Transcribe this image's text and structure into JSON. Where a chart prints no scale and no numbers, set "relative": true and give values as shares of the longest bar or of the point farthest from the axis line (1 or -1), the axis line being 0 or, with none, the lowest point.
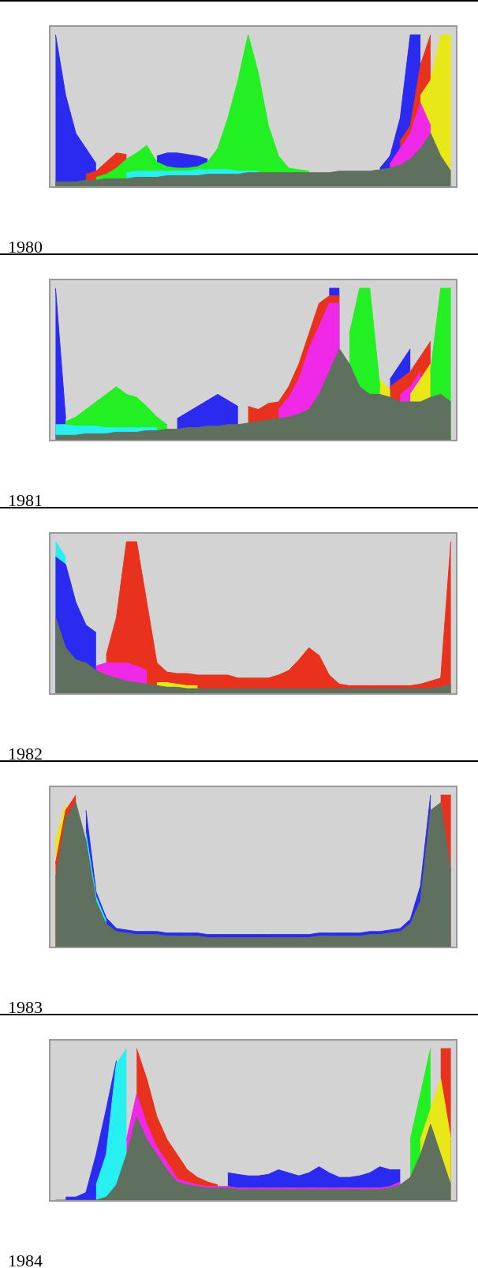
{
  "chart_data": [
    {
      "type": "area",
      "relative": true,
      "annotations": [
        "1980"
      ],
      "categories": [
        null,
        null,
        null,
        null,
        null,
        null,
        null,
        null,
        null,
        null,
        null,
        null,
        null,
        null,
        null,
        null,
        null,
        null,
        null,
        null,
        null,
        null,
        null,
        null,
        null,
        null,
        null,
        null,
        null,
        null,
        null,
        null,
        null,
        null,
        null,
        null,
        null,
        null,
        null,
        null
      ],
      "series": [
        {
          "color": "#2a2af0",
          "values": [
            1,
            0.6,
            0.35,
            0.25,
            0.15,
            null,
            null,
            null,
            null,
            null,
            0.2,
            0.22,
            0.22,
            0.21,
            0.2,
            0.18,
            null,
            null,
            null,
            null,
            null,
            null,
            null,
            null,
            null,
            null,
            null,
            null,
            null,
            null,
            null,
            null,
            0.12,
            0.2,
            0.45,
            1,
            1,
            null,
            null,
            null
          ]
        },
        {
          "color": "#e8321e",
          "values": [
            null,
            null,
            null,
            0.08,
            0.1,
            0.16,
            0.22,
            0.21,
            null,
            null,
            null,
            null,
            null,
            null,
            null,
            null,
            null,
            null,
            null,
            null,
            null,
            null,
            null,
            null,
            null,
            null,
            null,
            null,
            null,
            null,
            null,
            null,
            null,
            null,
            0.3,
            0.4,
            0.8,
            1,
            null,
            null
          ]
        },
        {
          "color": "#e8e818",
          "values": [
            null,
            null,
            null,
            null,
            null,
            null,
            null,
            null,
            null,
            null,
            null,
            null,
            null,
            null,
            null,
            null,
            null,
            null,
            null,
            null,
            null,
            null,
            null,
            null,
            null,
            null,
            null,
            null,
            null,
            null,
            null,
            null,
            null,
            null,
            null,
            null,
            0.6,
            0.7,
            1,
            1
          ]
        },
        {
          "color": "#f028e8",
          "values": [
            null,
            null,
            null,
            null,
            null,
            null,
            null,
            null,
            null,
            null,
            null,
            null,
            null,
            null,
            null,
            null,
            null,
            null,
            null,
            null,
            null,
            null,
            null,
            null,
            null,
            null,
            null,
            null,
            null,
            null,
            null,
            null,
            null,
            0.15,
            0.25,
            0.35,
            0.55,
            0.4,
            null,
            null
          ]
        },
        {
          "color": "#22f022",
          "values": [
            null,
            null,
            null,
            null,
            0.06,
            0.08,
            0.12,
            0.18,
            0.22,
            0.27,
            0.16,
            0.13,
            0.12,
            0.12,
            0.13,
            0.16,
            0.25,
            0.45,
            0.7,
            1,
            0.75,
            0.4,
            0.2,
            0.12,
            0.11,
            0.1,
            null,
            null,
            null,
            null,
            null,
            null,
            null,
            null,
            null,
            null,
            null,
            null,
            null,
            null
          ]
        },
        {
          "color": "#28f0f0",
          "values": [
            null,
            null,
            null,
            null,
            null,
            null,
            null,
            0.09,
            0.1,
            0.1,
            0.1,
            0.1,
            0.1,
            0.1,
            0.11,
            0.11,
            0.11,
            0.11,
            0.1,
            0.1,
            0.1,
            null,
            null,
            null,
            null,
            null,
            null,
            null,
            null,
            null,
            null,
            null,
            null,
            null,
            null,
            null,
            null,
            null,
            null,
            null
          ]
        },
        {
          "color": "#5f705f",
          "values": [
            0.03,
            0.03,
            0.03,
            0.04,
            0.04,
            0.05,
            0.05,
            0.05,
            0.06,
            0.06,
            0.06,
            0.07,
            0.07,
            0.07,
            0.07,
            0.08,
            0.08,
            0.08,
            0.08,
            0.09,
            0.09,
            0.09,
            0.09,
            0.09,
            0.09,
            0.09,
            0.09,
            0.09,
            0.1,
            0.1,
            0.1,
            0.1,
            0.11,
            0.12,
            0.14,
            0.18,
            0.25,
            0.35,
            0.2,
            0.1
          ]
        }
      ]
    },
    {
      "type": "area",
      "relative": true,
      "annotations": [
        "1981"
      ],
      "categories": [
        null,
        null,
        null,
        null,
        null,
        null,
        null,
        null,
        null,
        null,
        null,
        null,
        null,
        null,
        null,
        null,
        null,
        null,
        null,
        null,
        null,
        null,
        null,
        null,
        null,
        null,
        null,
        null,
        null,
        null,
        null,
        null,
        null,
        null,
        null,
        null,
        null,
        null,
        null,
        null
      ],
      "series": [
        {
          "color": "#2a2af0",
          "values": [
            1,
            0.14,
            null,
            null,
            null,
            null,
            null,
            null,
            null,
            null,
            null,
            null,
            0.14,
            0.18,
            0.22,
            0.26,
            0.3,
            0.26,
            0.22,
            null,
            null,
            null,
            null,
            null,
            null,
            null,
            null,
            1,
            1,
            null,
            null,
            null,
            null,
            0.4,
            0.5,
            0.6,
            null,
            null,
            null,
            null
          ]
        },
        {
          "color": "#e8321e",
          "values": [
            null,
            null,
            null,
            null,
            null,
            null,
            null,
            null,
            null,
            null,
            null,
            null,
            null,
            null,
            null,
            null,
            null,
            null,
            null,
            0.22,
            0.2,
            0.24,
            0.25,
            0.35,
            0.5,
            0.7,
            0.9,
            0.95,
            0.95,
            null,
            null,
            null,
            null,
            0.35,
            0.4,
            0.45,
            0.55,
            0.65,
            null,
            null
          ]
        },
        {
          "color": "#f028e8",
          "values": [
            null,
            null,
            null,
            null,
            null,
            null,
            null,
            null,
            null,
            null,
            null,
            null,
            null,
            null,
            null,
            null,
            null,
            null,
            null,
            null,
            null,
            null,
            0.2,
            0.28,
            0.4,
            0.6,
            0.75,
            0.9,
            0.9,
            null,
            null,
            null,
            null,
            null,
            0.3,
            0.35,
            0.45,
            null,
            null,
            null
          ]
        },
        {
          "color": "#e8e818",
          "values": [
            null,
            null,
            null,
            null,
            null,
            null,
            null,
            null,
            null,
            null,
            null,
            null,
            null,
            null,
            null,
            null,
            null,
            null,
            null,
            null,
            null,
            null,
            null,
            null,
            null,
            null,
            null,
            null,
            null,
            null,
            null,
            null,
            0.4,
            0.33,
            null,
            0.3,
            0.4,
            0.5,
            null,
            null
          ]
        },
        {
          "color": "#22f022",
          "values": [
            null,
            0.12,
            0.15,
            0.2,
            0.25,
            0.3,
            0.35,
            0.3,
            0.28,
            0.22,
            0.15,
            0.1,
            null,
            null,
            null,
            null,
            null,
            null,
            null,
            null,
            null,
            null,
            null,
            null,
            null,
            null,
            null,
            null,
            null,
            0.7,
            1,
            1,
            0.35,
            null,
            null,
            null,
            null,
            0.45,
            1,
            1
          ]
        },
        {
          "color": "#28f0f0",
          "values": [
            0.1,
            0.1,
            0.09,
            0.09,
            0.09,
            0.08,
            0.08,
            0.08,
            0.08,
            0.08,
            0.08,
            null,
            null,
            null,
            null,
            null,
            null,
            null,
            null,
            null,
            null,
            null,
            null,
            null,
            null,
            null,
            null,
            null,
            null,
            null,
            null,
            null,
            null,
            null,
            null,
            null,
            null,
            null,
            null,
            null
          ]
        },
        {
          "color": "#5f705f",
          "values": [
            0.03,
            0.03,
            0.03,
            0.04,
            0.04,
            0.04,
            0.05,
            0.05,
            0.05,
            0.06,
            0.06,
            0.07,
            0.07,
            0.08,
            0.08,
            0.09,
            0.09,
            0.1,
            0.1,
            0.11,
            0.12,
            0.13,
            0.14,
            0.15,
            0.17,
            0.2,
            0.3,
            0.45,
            0.6,
            0.5,
            0.35,
            0.3,
            0.3,
            0.28,
            0.25,
            0.25,
            0.25,
            0.28,
            0.3,
            0.25
          ]
        }
      ]
    },
    {
      "type": "area",
      "relative": true,
      "annotations": [
        "1982"
      ],
      "categories": [
        null,
        null,
        null,
        null,
        null,
        null,
        null,
        null,
        null,
        null,
        null,
        null,
        null,
        null,
        null,
        null,
        null,
        null,
        null,
        null,
        null,
        null,
        null,
        null,
        null,
        null,
        null,
        null,
        null,
        null,
        null,
        null,
        null,
        null,
        null,
        null,
        null,
        null,
        null,
        null
      ],
      "series": [
        {
          "color": "#28f0f0",
          "values": [
            1,
            0.9,
            null,
            null,
            null,
            null,
            null,
            null,
            null,
            null,
            null,
            null,
            null,
            null,
            null,
            null,
            null,
            null,
            null,
            null,
            null,
            null,
            null,
            null,
            null,
            null,
            null,
            null,
            null,
            null,
            null,
            null,
            null,
            null,
            null,
            null,
            null,
            null,
            null,
            null
          ]
        },
        {
          "color": "#2a2af0",
          "values": [
            0.9,
            0.85,
            0.6,
            0.45,
            0.4,
            null,
            null,
            null,
            null,
            null,
            null,
            null,
            null,
            null,
            null,
            null,
            null,
            null,
            null,
            null,
            null,
            null,
            null,
            null,
            null,
            null,
            null,
            null,
            null,
            null,
            null,
            null,
            null,
            null,
            null,
            null,
            null,
            null,
            null,
            null
          ]
        },
        {
          "color": "#e8321e",
          "values": [
            null,
            null,
            null,
            null,
            null,
            0.25,
            0.5,
            1,
            1,
            0.6,
            0.2,
            0.14,
            0.13,
            0.13,
            0.12,
            0.12,
            0.12,
            0.12,
            0.1,
            0.1,
            0.1,
            0.1,
            0.12,
            0.15,
            0.22,
            0.3,
            0.25,
            0.12,
            0.06,
            0.05,
            0.05,
            0.05,
            0.05,
            0.05,
            0.05,
            0.05,
            0.06,
            0.08,
            0.1,
            1
          ]
        },
        {
          "color": "#f028e8",
          "values": [
            null,
            null,
            null,
            null,
            0.18,
            0.2,
            0.2,
            0.2,
            0.18,
            0.15,
            null,
            null,
            null,
            null,
            null,
            null,
            null,
            null,
            null,
            null,
            null,
            null,
            null,
            null,
            null,
            null,
            null,
            null,
            null,
            null,
            null,
            null,
            null,
            null,
            null,
            null,
            null,
            null,
            null,
            null
          ]
        },
        {
          "color": "#e8e818",
          "values": [
            null,
            null,
            null,
            null,
            null,
            null,
            null,
            null,
            null,
            null,
            0.07,
            0.07,
            0.06,
            0.05,
            0.05,
            null,
            null,
            null,
            null,
            null,
            null,
            null,
            null,
            null,
            null,
            null,
            null,
            null,
            null,
            null,
            null,
            null,
            null,
            null,
            null,
            null,
            null,
            null,
            null,
            null
          ]
        },
        {
          "color": "#5f705f",
          "values": [
            0.5,
            0.3,
            0.22,
            0.2,
            0.15,
            0.12,
            0.1,
            0.08,
            0.07,
            0.06,
            0.05,
            0.04,
            0.04,
            0.03,
            0.03,
            0.03,
            0.03,
            0.03,
            0.03,
            0.03,
            0.03,
            0.03,
            0.03,
            0.03,
            0.03,
            0.03,
            0.03,
            0.03,
            0.03,
            0.03,
            0.03,
            0.03,
            0.03,
            0.03,
            0.03,
            0.03,
            0.03,
            0.03,
            0.04,
            0.06
          ]
        }
      ]
    },
    {
      "type": "area",
      "relative": true,
      "annotations": [
        "1983"
      ],
      "categories": [
        null,
        null,
        null,
        null,
        null,
        null,
        null,
        null,
        null,
        null,
        null,
        null,
        null,
        null,
        null,
        null,
        null,
        null,
        null,
        null,
        null,
        null,
        null,
        null,
        null,
        null,
        null,
        null,
        null,
        null,
        null,
        null,
        null,
        null,
        null,
        null,
        null,
        null,
        null,
        null
      ],
      "series": [
        {
          "color": "#e8e818",
          "values": [
            0.7,
            0.95,
            null,
            null,
            null,
            null,
            null,
            null,
            null,
            null,
            null,
            null,
            null,
            null,
            null,
            null,
            null,
            null,
            null,
            null,
            null,
            null,
            null,
            null,
            null,
            null,
            null,
            null,
            null,
            null,
            null,
            null,
            null,
            null,
            null,
            null,
            null,
            null,
            null,
            null
          ]
        },
        {
          "color": "#e8321e",
          "values": [
            0.55,
            0.9,
            1,
            null,
            null,
            null,
            null,
            null,
            null,
            null,
            null,
            null,
            null,
            null,
            null,
            null,
            null,
            null,
            null,
            null,
            null,
            null,
            null,
            null,
            null,
            null,
            null,
            null,
            null,
            null,
            null,
            null,
            null,
            null,
            null,
            null,
            null,
            null,
            1,
            1
          ]
        },
        {
          "color": "#2a2af0",
          "values": [
            null,
            null,
            null,
            0.9,
            0.36,
            0.19,
            0.12,
            0.11,
            0.1,
            0.1,
            0.1,
            0.09,
            0.09,
            0.09,
            0.09,
            0.08,
            0.08,
            0.08,
            0.08,
            0.08,
            0.08,
            0.08,
            0.08,
            0.08,
            0.08,
            0.08,
            0.09,
            0.09,
            0.09,
            0.09,
            0.09,
            0.1,
            0.1,
            0.11,
            0.12,
            0.18,
            0.4,
            1,
            null,
            null
          ]
        },
        {
          "color": "#28f0f0",
          "values": [
            null,
            null,
            null,
            0.75,
            0.33,
            0.17,
            null,
            null,
            null,
            null,
            null,
            null,
            null,
            null,
            null,
            null,
            null,
            null,
            null,
            null,
            null,
            null,
            null,
            null,
            null,
            null,
            null,
            null,
            null,
            null,
            null,
            null,
            null,
            null,
            null,
            null,
            null,
            null,
            null,
            null
          ]
        },
        {
          "color": "#5f705f",
          "values": [
            0.45,
            0.85,
            0.95,
            0.7,
            0.3,
            0.15,
            0.1,
            0.09,
            0.08,
            0.08,
            0.08,
            0.07,
            0.07,
            0.07,
            0.07,
            0.06,
            0.06,
            0.06,
            0.06,
            0.06,
            0.06,
            0.06,
            0.06,
            0.06,
            0.06,
            0.06,
            0.07,
            0.07,
            0.07,
            0.07,
            0.07,
            0.08,
            0.08,
            0.09,
            0.1,
            0.15,
            0.3,
            0.9,
            0.95,
            0.5
          ]
        }
      ]
    },
    {
      "type": "area",
      "relative": true,
      "annotations": [
        "1984"
      ],
      "categories": [
        null,
        null,
        null,
        null,
        null,
        null,
        null,
        null,
        null,
        null,
        null,
        null,
        null,
        null,
        null,
        null,
        null,
        null,
        null,
        null,
        null,
        null,
        null,
        null,
        null,
        null,
        null,
        null,
        null,
        null,
        null,
        null,
        null,
        null,
        null,
        null,
        null,
        null,
        null,
        null
      ],
      "series": [
        {
          "color": "#2a2af0",
          "values": [
            null,
            0.02,
            0.02,
            0.05,
            0.3,
            0.6,
            0.92,
            null,
            null,
            null,
            null,
            null,
            null,
            null,
            null,
            null,
            null,
            0.18,
            0.17,
            0.16,
            0.16,
            0.17,
            0.2,
            0.18,
            0.16,
            0.18,
            0.22,
            0.18,
            0.15,
            0.15,
            0.16,
            0.18,
            0.22,
            0.2,
            0.2,
            null,
            null,
            null,
            null,
            null
          ]
        },
        {
          "color": "#28f0f0",
          "values": [
            null,
            null,
            null,
            null,
            0.1,
            0.3,
            0.9,
            1,
            null,
            null,
            null,
            null,
            null,
            null,
            null,
            null,
            null,
            null,
            null,
            null,
            null,
            null,
            null,
            null,
            null,
            null,
            null,
            null,
            null,
            null,
            null,
            null,
            null,
            null,
            null,
            null,
            null,
            null,
            null,
            null
          ]
        },
        {
          "color": "#e8321e",
          "values": [
            null,
            null,
            null,
            null,
            null,
            null,
            null,
            null,
            1,
            0.8,
            0.55,
            0.4,
            0.3,
            0.2,
            0.15,
            0.12,
            0.1,
            null,
            null,
            null,
            null,
            null,
            null,
            null,
            null,
            null,
            null,
            null,
            null,
            null,
            null,
            null,
            null,
            null,
            null,
            null,
            null,
            null,
            1,
            1
          ]
        },
        {
          "color": "#f028e8",
          "values": [
            null,
            null,
            null,
            null,
            null,
            null,
            null,
            0.4,
            0.7,
            0.5,
            0.35,
            0.25,
            0.14,
            0.12,
            0.1,
            0.09,
            0.09,
            0.09,
            0.08,
            0.08,
            0.08,
            0.08,
            0.08,
            0.08,
            0.08,
            0.08,
            0.08,
            0.08,
            0.08,
            0.08,
            0.08,
            0.08,
            0.08,
            0.09,
            0.12,
            null,
            null,
            null,
            null,
            null
          ]
        },
        {
          "color": "#22f022",
          "values": [
            null,
            null,
            null,
            null,
            null,
            null,
            null,
            null,
            null,
            null,
            null,
            null,
            null,
            null,
            null,
            null,
            null,
            null,
            null,
            null,
            null,
            null,
            null,
            null,
            null,
            null,
            null,
            null,
            null,
            null,
            null,
            null,
            null,
            null,
            null,
            0.4,
            0.7,
            1,
            null,
            null
          ]
        },
        {
          "color": "#e8e818",
          "values": [
            null,
            null,
            null,
            null,
            null,
            null,
            null,
            null,
            null,
            null,
            null,
            null,
            null,
            null,
            null,
            null,
            null,
            null,
            null,
            null,
            null,
            null,
            null,
            null,
            null,
            null,
            null,
            null,
            null,
            null,
            null,
            null,
            null,
            null,
            null,
            null,
            0.4,
            0.6,
            0.8,
            0.4
          ]
        },
        {
          "color": "#5f705f",
          "values": [
            0,
            0,
            0,
            0,
            0,
            0.02,
            0.1,
            0.3,
            0.55,
            0.4,
            0.3,
            0.2,
            0.12,
            0.1,
            0.09,
            0.08,
            0.08,
            0.08,
            0.07,
            0.07,
            0.07,
            0.07,
            0.07,
            0.07,
            0.07,
            0.07,
            0.07,
            0.07,
            0.07,
            0.07,
            0.07,
            0.07,
            0.07,
            0.08,
            0.1,
            0.15,
            0.3,
            0.5,
            0.3,
            0.1
          ]
        }
      ]
    }
  ]
}
